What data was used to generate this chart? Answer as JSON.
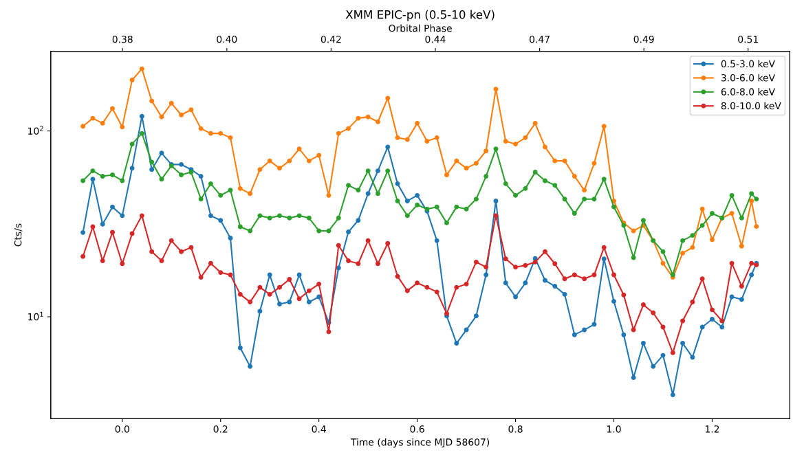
{
  "chart_data": {
    "type": "line",
    "title": "XMM EPIC-pn (0.5-10 keV)",
    "xlabel": "Time (days since MJD 58607)",
    "ylabel": "Cts/s",
    "x2label": "Orbital Phase",
    "log": "y",
    "grid": false,
    "legend": "top right",
    "marker": "circle",
    "line_style": "solid",
    "xlim": [
      -0.1455,
      1.358
    ],
    "xticks": [
      {
        "value": 0,
        "label": "0.0"
      },
      0.2,
      0.4,
      0.6,
      0.8,
      {
        "value": 1,
        "label": "1.0"
      },
      1.2
    ],
    "x2lim": [
      0.362,
      0.5215
    ],
    "x2ticks": [
      {
        "value": 0.3775,
        "label": "0.38"
      },
      {
        "value": 0.4,
        "label": "0.40"
      },
      {
        "value": 0.4225,
        "label": "0.42"
      },
      {
        "value": 0.445,
        "label": "0.44"
      },
      {
        "value": 0.4675,
        "label": "0.47"
      },
      {
        "value": 0.49,
        "label": "0.49"
      },
      {
        "value": 0.5125,
        "label": "0.51"
      }
    ],
    "ylim": [
      2.83,
      268
    ],
    "yticks": [
      {
        "value": 10,
        "label": "10$^{1}$"
      },
      {
        "value": 100,
        "label": "10$^{2}$"
      }
    ],
    "x": [
      -0.08,
      -0.06,
      -0.04,
      -0.02,
      0.0,
      0.02,
      0.04,
      0.06,
      0.08,
      0.1,
      0.12,
      0.14,
      0.16,
      0.18,
      0.2,
      0.22,
      0.24,
      0.26,
      0.28,
      0.3,
      0.32,
      0.34,
      0.36,
      0.38,
      0.4,
      0.42,
      0.44,
      0.46,
      0.48,
      0.5,
      0.52,
      0.54,
      0.56,
      0.58,
      0.6,
      0.62,
      0.64,
      0.66,
      0.68,
      0.7,
      0.72,
      0.74,
      0.76,
      0.78,
      0.8,
      0.82,
      0.84,
      0.86,
      0.88,
      0.9,
      0.92,
      0.94,
      0.96,
      0.98,
      1.0,
      1.02,
      1.04,
      1.06,
      1.08,
      1.1,
      1.12,
      1.14,
      1.16,
      1.18,
      1.2,
      1.22,
      1.24,
      1.26,
      1.28,
      1.29
    ],
    "series": [
      {
        "name": "0.5-3.0 keV",
        "color": "#1f77b4",
        "values": [
          28.4,
          55,
          31.5,
          39,
          35,
          63,
          120,
          62,
          76,
          66,
          66,
          62,
          57,
          35,
          33,
          26.5,
          6.8,
          5.4,
          10.7,
          16.8,
          11.7,
          12.0,
          16.8,
          12.0,
          12.8,
          9.3,
          18.3,
          28.6,
          33,
          46,
          61,
          82,
          52,
          42,
          45,
          37,
          25.7,
          10.1,
          7.2,
          8.5,
          10.1,
          16.8,
          42,
          15.2,
          12.8,
          15.2,
          20.6,
          15.7,
          14.6,
          13.2,
          8.0,
          8.5,
          9.1,
          20.5,
          12.1,
          8.0,
          4.7,
          7.2,
          5.4,
          6.2,
          3.8,
          7.2,
          6.05,
          8.8,
          9.7,
          8.8,
          12.8,
          12.4,
          16.8,
          19.4
        ]
      },
      {
        "name": "3.0-6.0 keV",
        "color": "#ff7f0e",
        "values": [
          106,
          117,
          110,
          132,
          105,
          188,
          216,
          145,
          119,
          141,
          122,
          130,
          103,
          97,
          97,
          92,
          49,
          46,
          62,
          69,
          63,
          69,
          80,
          69,
          74,
          45,
          97,
          103,
          117,
          119,
          112,
          150,
          92,
          90,
          110,
          88,
          92,
          58,
          69,
          63,
          67,
          78,
          168,
          88,
          85,
          92,
          110,
          82,
          69,
          69,
          57,
          48,
          67,
          106,
          42,
          32,
          29,
          31,
          25.7,
          19.4,
          16.3,
          22,
          23.6,
          38,
          26,
          34,
          36,
          24,
          42,
          30.6
        ]
      },
      {
        "name": "6.0-8.0 keV",
        "color": "#2ca02c",
        "values": [
          54,
          61,
          57,
          58,
          54,
          85,
          97,
          68,
          55,
          65,
          58,
          60,
          43,
          52,
          45,
          48,
          30.5,
          29,
          35,
          34,
          35,
          34,
          35,
          34,
          29,
          29,
          34,
          51,
          48,
          61,
          46,
          61,
          42,
          35,
          40,
          38,
          39,
          32,
          39,
          38,
          43,
          57,
          80,
          52,
          45,
          49,
          60,
          54,
          51,
          43,
          36,
          43,
          43,
          55,
          39,
          31,
          20.8,
          33,
          25.7,
          22.4,
          16.8,
          25.7,
          27.4,
          31,
          36,
          34,
          45,
          34,
          46,
          43
        ]
      },
      {
        "name": "8.0-10.0 keV",
        "color": "#d62728",
        "values": [
          21.1,
          30.5,
          20,
          28.5,
          19.3,
          28,
          35,
          22.4,
          20,
          25.7,
          22.4,
          23.6,
          16.3,
          19.4,
          17.3,
          16.8,
          13.2,
          12.0,
          14.4,
          13.2,
          14.4,
          15.9,
          12.5,
          13.8,
          15.0,
          8.3,
          24.2,
          20,
          19.3,
          25.7,
          19.3,
          24.8,
          16.5,
          13.8,
          15.2,
          14.4,
          13.6,
          10.4,
          14.4,
          15.0,
          19.7,
          18.5,
          35,
          20.5,
          18.5,
          18.9,
          19.7,
          22.4,
          19.3,
          16.0,
          16.8,
          16.0,
          16.8,
          23.6,
          16.8,
          13.1,
          8.5,
          11.6,
          10.5,
          8.8,
          6.4,
          9.5,
          12.0,
          16.0,
          10.9,
          9.5,
          19.4,
          14.6,
          19.4,
          19.0
        ]
      }
    ]
  }
}
